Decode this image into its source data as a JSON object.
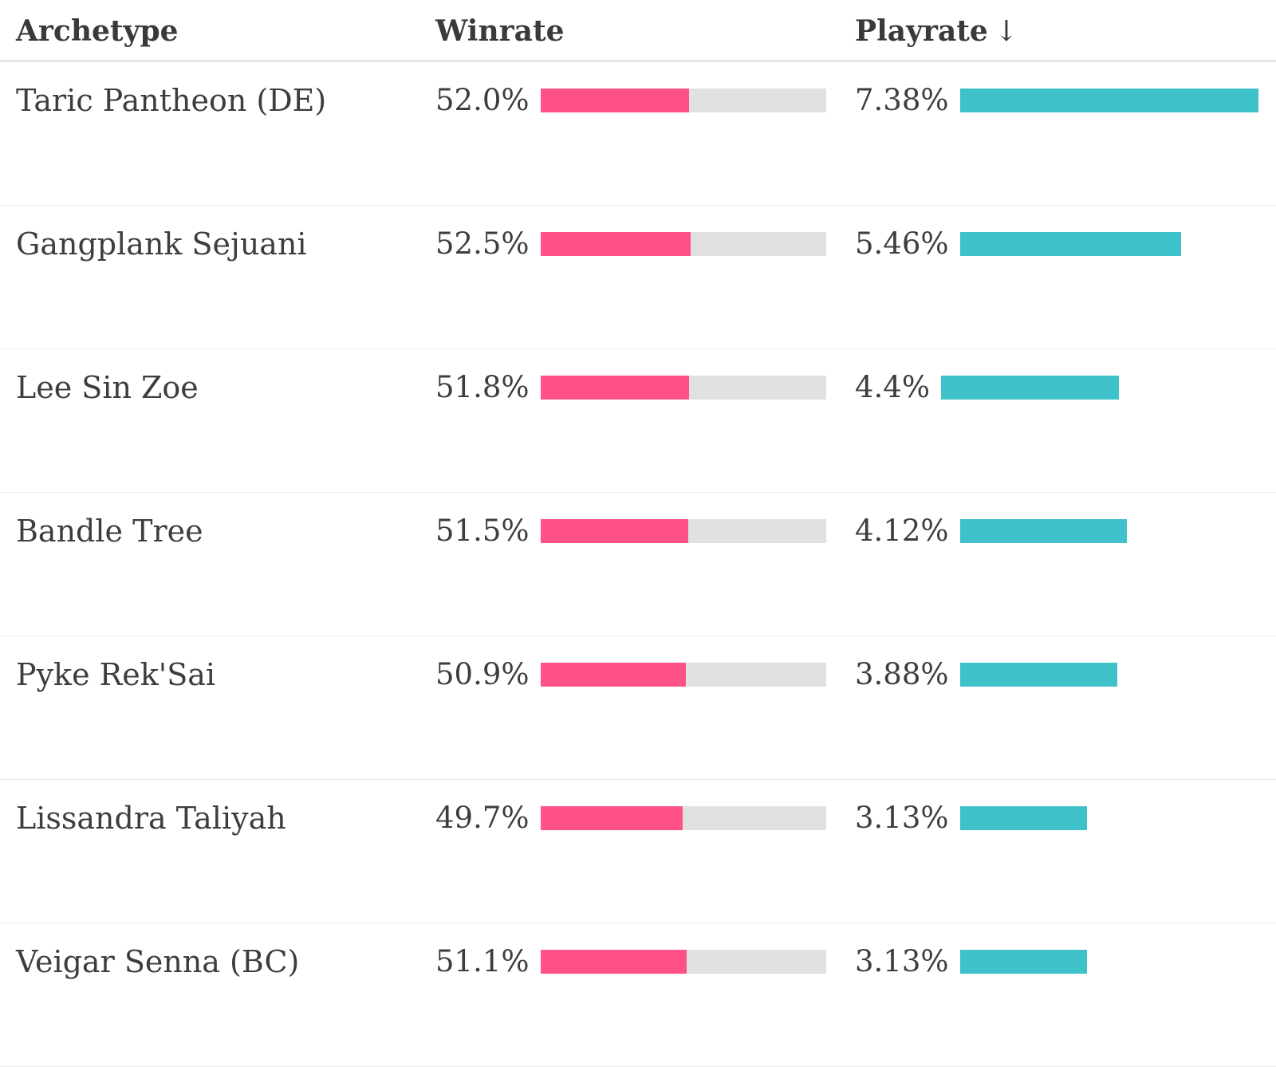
{
  "header": {
    "archetype": "Archetype",
    "winrate": "Winrate",
    "playrate": "Playrate",
    "sort_arrow": "↓"
  },
  "colors": {
    "winrate_fill": "#fe5286",
    "winrate_track": "#e1e1e1",
    "playrate_fill": "#3ec1c8"
  },
  "rows": [
    {
      "name": "Taric Pantheon (DE)",
      "winrate": "52.0%",
      "winrate_value": 52.0,
      "playrate": "7.38%",
      "playrate_value": 7.38
    },
    {
      "name": "Gangplank Sejuani",
      "winrate": "52.5%",
      "winrate_value": 52.5,
      "playrate": "5.46%",
      "playrate_value": 5.46
    },
    {
      "name": "Lee Sin Zoe",
      "winrate": "51.8%",
      "winrate_value": 51.8,
      "playrate": "4.4%",
      "playrate_value": 4.4
    },
    {
      "name": "Bandle Tree",
      "winrate": "51.5%",
      "winrate_value": 51.5,
      "playrate": "4.12%",
      "playrate_value": 4.12
    },
    {
      "name": "Pyke Rek'Sai",
      "winrate": "50.9%",
      "winrate_value": 50.9,
      "playrate": "3.88%",
      "playrate_value": 3.88
    },
    {
      "name": "Lissandra Taliyah",
      "winrate": "49.7%",
      "winrate_value": 49.7,
      "playrate": "3.13%",
      "playrate_value": 3.13
    },
    {
      "name": "Veigar Senna (BC)",
      "winrate": "51.1%",
      "winrate_value": 51.1,
      "playrate": "3.13%",
      "playrate_value": 3.13
    }
  ]
}
